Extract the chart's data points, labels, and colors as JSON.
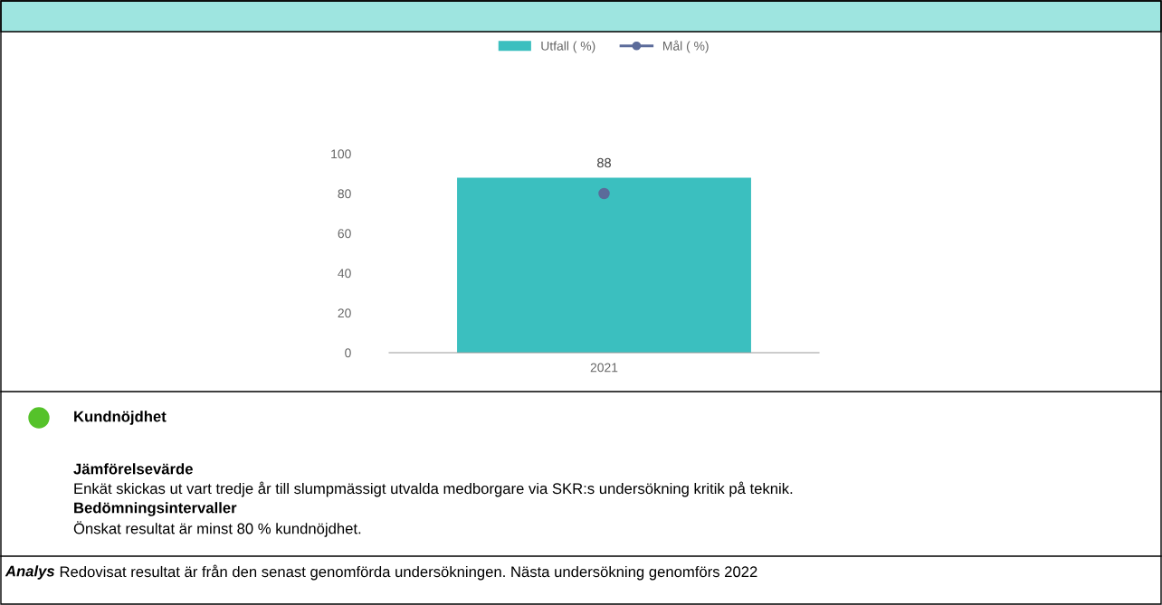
{
  "chart_data": {
    "type": "bar",
    "categories": [
      "2021"
    ],
    "series": [
      {
        "name": "Utfall ( %)",
        "color": "#3bbfbf",
        "values": [
          88
        ],
        "value_labels": [
          "88"
        ]
      },
      {
        "name": "Mål ( %)",
        "type": "line",
        "color": "#5b6b9a",
        "values": [
          80
        ],
        "marker": "circle"
      }
    ],
    "ylim": [
      0,
      100
    ],
    "yticks": [
      0,
      20,
      40,
      60,
      80,
      100
    ],
    "grid": false,
    "legend": "top",
    "annotations": [
      "Kundnöjdhet",
      "Jämförelsevärde",
      "Enkät skickas ut vart tredje år till slumpmässigt utvalda medborgare via SKR:s undersökning kritik på teknik.",
      "Bedömningsintervaller",
      "Önskat resultat är minst 80 % kundnöjdhet.",
      "Analys",
      "Redovisat resultat är från den senast genomförda undersökningen. Nästa undersökning genomförs 2022"
    ]
  }
}
